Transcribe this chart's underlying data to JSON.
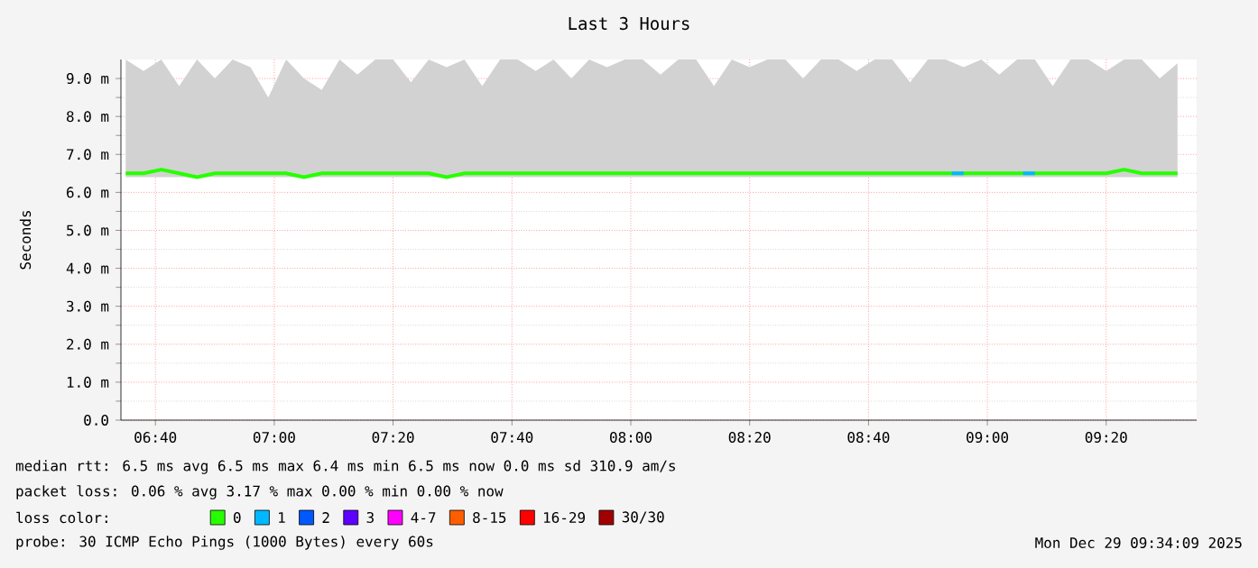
{
  "chart_data": {
    "type": "line",
    "title": "Last 3 Hours",
    "ylabel": "Seconds",
    "legend_title": "loss color:",
    "legend": "bottom",
    "grid": true,
    "line_style": "solid",
    "marker": "none",
    "xlim": [
      6.57,
      9.587
    ],
    "ylim": [
      0,
      9.5
    ],
    "xticks": [
      {
        "value": 6.6667,
        "label": "06:40"
      },
      {
        "value": 7.0,
        "label": "07:00"
      },
      {
        "value": 7.3333,
        "label": "07:20"
      },
      {
        "value": 7.6667,
        "label": "07:40"
      },
      {
        "value": 8.0,
        "label": "08:00"
      },
      {
        "value": 8.3333,
        "label": "08:20"
      },
      {
        "value": 8.6667,
        "label": "08:40"
      },
      {
        "value": 9.0,
        "label": "09:00"
      },
      {
        "value": 9.3333,
        "label": "09:20"
      }
    ],
    "yticks": [
      {
        "value": 0,
        "label": "0.0"
      },
      {
        "value": 1,
        "label": "1.0 m"
      },
      {
        "value": 2,
        "label": "2.0 m"
      },
      {
        "value": 3,
        "label": "3.0 m"
      },
      {
        "value": 4,
        "label": "4.0 m"
      },
      {
        "value": 5,
        "label": "5.0 m"
      },
      {
        "value": 6,
        "label": "6.0 m"
      },
      {
        "value": 7,
        "label": "7.0 m"
      },
      {
        "value": 8,
        "label": "8.0 m"
      },
      {
        "value": 9,
        "label": "9.0 m"
      }
    ],
    "series": [
      {
        "name": "0",
        "color": "#26ff00",
        "x": [
          6.5833,
          6.6333,
          6.6833,
          6.7333,
          6.7833,
          6.8333,
          6.8833,
          6.9333,
          6.9833,
          7.0333,
          7.0833,
          7.1333,
          7.1833,
          7.2333,
          7.2833,
          7.3333,
          7.3833,
          7.4333,
          7.4833,
          7.5333,
          7.5833,
          7.6333,
          7.6833,
          7.7333,
          7.7833,
          7.8333,
          7.8833,
          7.9333,
          7.9833,
          8.0333,
          8.0833,
          8.1333,
          8.1833,
          8.2333,
          8.2833,
          8.3333,
          8.3833,
          8.4333,
          8.4833,
          8.5333,
          8.5833,
          8.6333,
          8.6833,
          8.7333,
          8.7833,
          8.8333,
          8.8833,
          8.9333,
          8.9833,
          9.0333,
          9.0833,
          9.1333,
          9.1833,
          9.2333,
          9.2833,
          9.3333,
          9.3833,
          9.4333,
          9.4833,
          9.5333
        ],
        "values": [
          6.5,
          6.5,
          6.6,
          6.5,
          6.4,
          6.5,
          6.5,
          6.5,
          6.5,
          6.5,
          6.4,
          6.5,
          6.5,
          6.5,
          6.5,
          6.5,
          6.5,
          6.5,
          6.4,
          6.5,
          6.5,
          6.5,
          6.5,
          6.5,
          6.5,
          6.5,
          6.5,
          6.5,
          6.5,
          6.5,
          6.5,
          6.5,
          6.5,
          6.5,
          6.5,
          6.5,
          6.5,
          6.5,
          6.5,
          6.5,
          6.5,
          6.5,
          6.5,
          6.5,
          6.5,
          6.5,
          6.5,
          6.5,
          6.5,
          6.5,
          6.5,
          6.5,
          6.5,
          6.5,
          6.5,
          6.5,
          6.6,
          6.5,
          6.5,
          6.5
        ],
        "lower": [
          6.4,
          6.4,
          6.4,
          6.4,
          6.4,
          6.4,
          6.4,
          6.4,
          6.4,
          6.4,
          6.4,
          6.4,
          6.4,
          6.4,
          6.4,
          6.4,
          6.4,
          6.4,
          6.4,
          6.4,
          6.4,
          6.4,
          6.4,
          6.4,
          6.4,
          6.4,
          6.4,
          6.4,
          6.4,
          6.4,
          6.4,
          6.4,
          6.4,
          6.4,
          6.4,
          6.4,
          6.4,
          6.4,
          6.4,
          6.4,
          6.4,
          6.4,
          6.4,
          6.4,
          6.4,
          6.4,
          6.4,
          6.4,
          6.4,
          6.4,
          6.4,
          6.4,
          6.4,
          6.4,
          6.4,
          6.4,
          6.4,
          6.4,
          6.4,
          6.4
        ],
        "upper": [
          9.5,
          9.2,
          9.5,
          8.8,
          9.5,
          9.0,
          9.5,
          9.3,
          8.5,
          9.5,
          9.0,
          8.7,
          9.5,
          9.1,
          9.5,
          9.5,
          8.9,
          9.5,
          9.3,
          9.5,
          8.8,
          9.5,
          9.5,
          9.2,
          9.5,
          9.0,
          9.5,
          9.3,
          9.5,
          9.5,
          9.1,
          9.5,
          9.5,
          8.8,
          9.5,
          9.3,
          9.5,
          9.5,
          9.0,
          9.5,
          9.5,
          9.2,
          9.5,
          9.5,
          8.9,
          9.5,
          9.5,
          9.3,
          9.5,
          9.1,
          9.5,
          9.5,
          8.8,
          9.5,
          9.5,
          9.2,
          9.5,
          9.5,
          9.0,
          9.4
        ]
      },
      {
        "name": "1",
        "color": "#00b8ff",
        "x": [
          8.9,
          8.9333,
          8.95,
          9.1,
          9.1333
        ],
        "values": [
          6.5,
          6.5,
          null,
          6.5,
          6.5
        ]
      },
      {
        "name": "2",
        "color": "#0059ff"
      },
      {
        "name": "3",
        "color": "#5e00ff"
      },
      {
        "name": "4-7",
        "color": "#ff00ff"
      },
      {
        "name": "8-15",
        "color": "#ff5e00"
      },
      {
        "name": "16-29",
        "color": "#ff0000"
      },
      {
        "name": "30/30",
        "color": "#a10000"
      }
    ],
    "annotations": [
      "median rtt:  6.5 ms avg  6.5 ms max  6.4 ms min  6.5 ms now  0.0 ms sd  310.9   am/s",
      "packet loss: 0.06 % avg  3.17 % max  0.00 % min  0.00 % now",
      "probe:       30 ICMP Echo Pings (1000 Bytes) every 60s",
      "Mon Dec 29 09:34:09 2025"
    ]
  }
}
